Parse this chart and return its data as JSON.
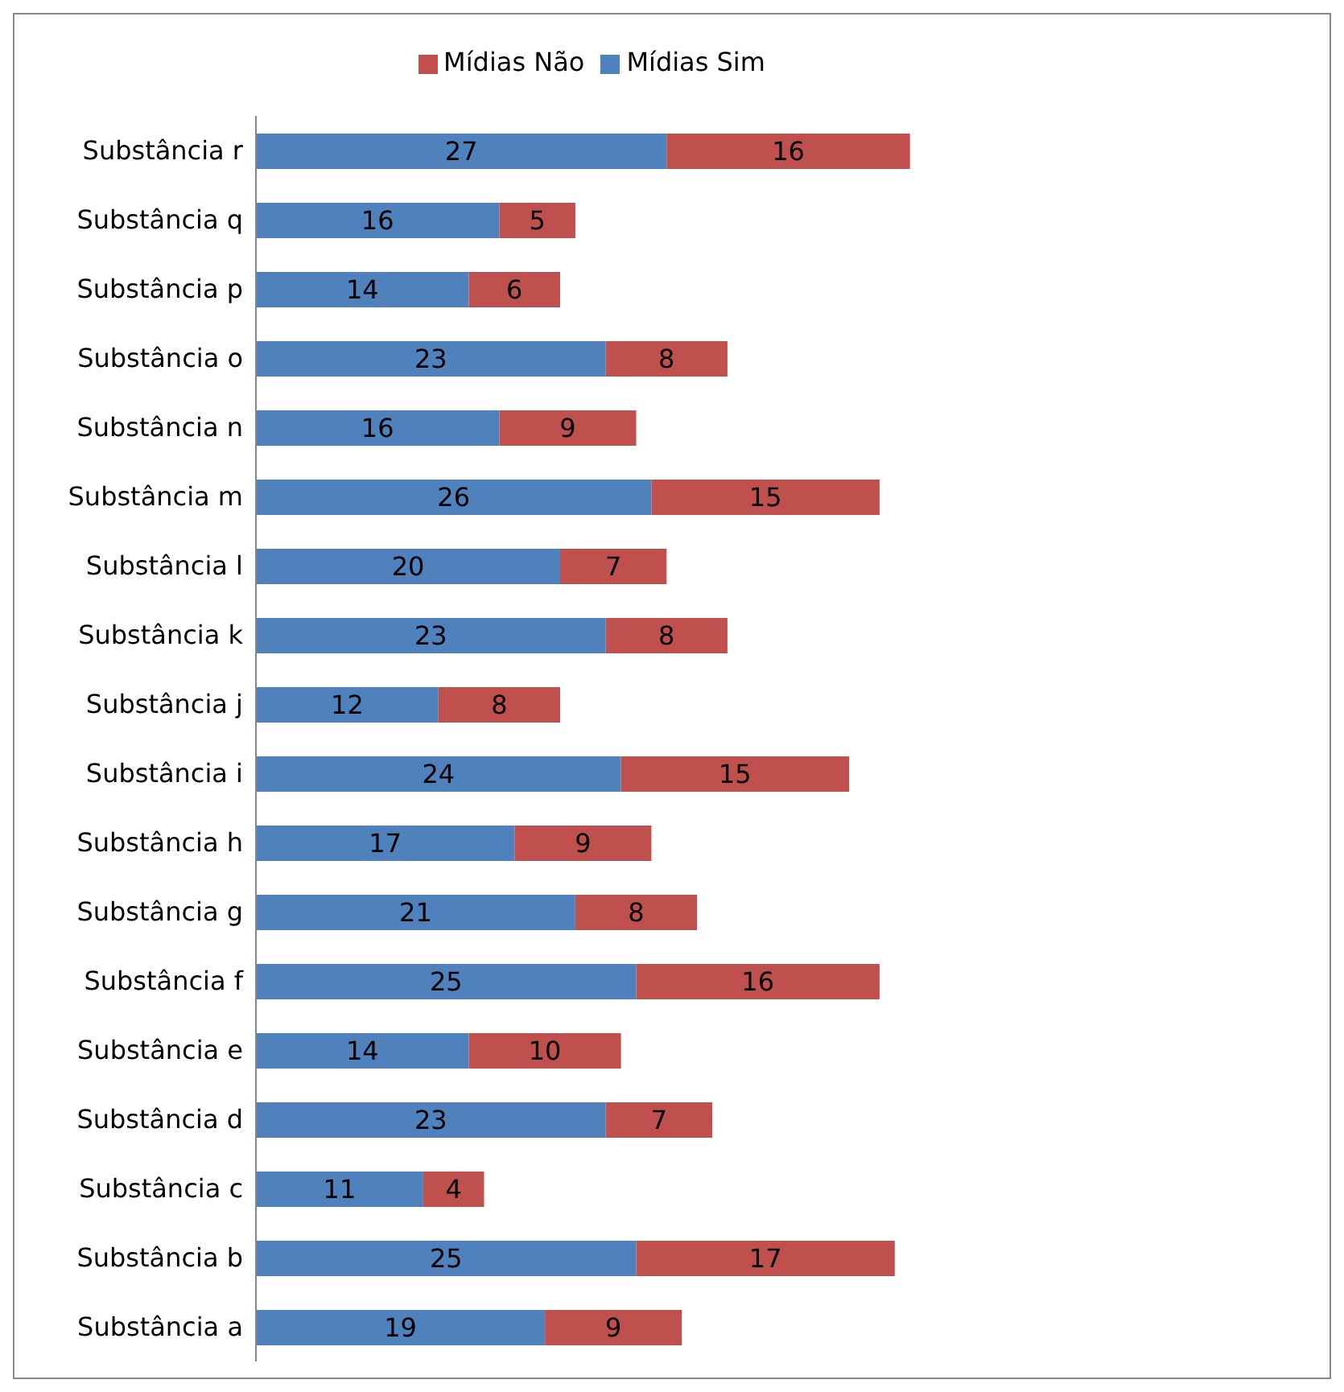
{
  "chart_data": {
    "type": "bar",
    "orientation": "horizontal",
    "stacked": true,
    "data_labels": true,
    "legend": "top",
    "grid": false,
    "tick_labels": "y",
    "categories": [
      "Substância r",
      "Substância q",
      "Substância p",
      "Substância o",
      "Substância n",
      "Substância m",
      "Substância l",
      "Substância k",
      "Substância j",
      "Substância i",
      "Substância h",
      "Substância g",
      "Substância f",
      "Substância e",
      "Substância d",
      "Substância c",
      "Substância b",
      "Substância a"
    ],
    "series": [
      {
        "name": "Mídias Sim",
        "color": "#4f81bd",
        "values": [
          27,
          16,
          14,
          23,
          16,
          26,
          20,
          23,
          12,
          24,
          17,
          21,
          25,
          14,
          23,
          11,
          25,
          19
        ]
      },
      {
        "name": "Mídias Não",
        "color": "#c0504d",
        "values": [
          16,
          5,
          6,
          8,
          9,
          15,
          7,
          8,
          8,
          15,
          9,
          8,
          16,
          10,
          7,
          4,
          17,
          9
        ]
      }
    ]
  }
}
